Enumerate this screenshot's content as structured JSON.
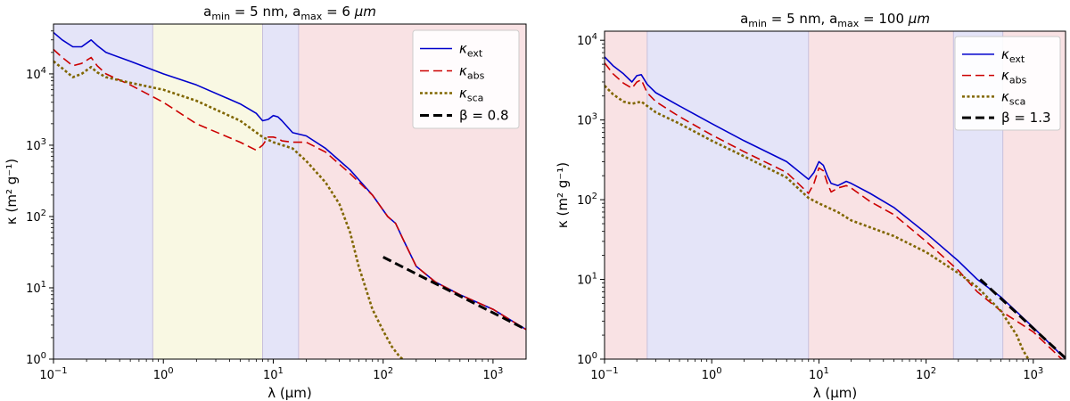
{
  "chart_data": [
    {
      "type": "line",
      "title": "a_min = 5 nm, a_max = 6 μm",
      "title_parts": {
        "amin": "a",
        "amin_sub": "min",
        "amin_val": " = 5 nm, ",
        "amax": "a",
        "amax_sub": "max",
        "amax_val": " = 6 ",
        "unit": "μm"
      },
      "xlabel": "λ (μm)",
      "ylabel": "κ (m² g⁻¹)",
      "xscale": "log",
      "yscale": "log",
      "xlim": [
        0.1,
        2000
      ],
      "ylim": [
        1,
        50000
      ],
      "x_ticks": [
        {
          "value": 0.1,
          "base": "10",
          "exp": "−1"
        },
        {
          "value": 1,
          "base": "10",
          "exp": "0"
        },
        {
          "value": 10,
          "base": "10",
          "exp": "1"
        },
        {
          "value": 100,
          "base": "10",
          "exp": "2"
        },
        {
          "value": 1000,
          "base": "10",
          "exp": "3"
        }
      ],
      "y_ticks": [
        {
          "value": 1,
          "base": "10",
          "exp": "0"
        },
        {
          "value": 10,
          "base": "10",
          "exp": "1"
        },
        {
          "value": 100,
          "base": "10",
          "exp": "2"
        },
        {
          "value": 1000,
          "base": "10",
          "exp": "3"
        },
        {
          "value": 10000,
          "base": "10",
          "exp": "4"
        }
      ],
      "regions": [
        {
          "x0": 0.1,
          "x1": 0.8,
          "color": "#e4e4f8"
        },
        {
          "x0": 0.8,
          "x1": 8,
          "color": "#f9f8e3"
        },
        {
          "x0": 8,
          "x1": 17,
          "color": "#e4e4f8"
        },
        {
          "x0": 17,
          "x1": 2000,
          "color": "#f9e2e4"
        }
      ],
      "legend_location": "top-right",
      "series": [
        {
          "name": "κ_ext",
          "label_main": "κ",
          "label_sub": "ext",
          "color": "#0000cc",
          "dash": "solid",
          "x": [
            0.1,
            0.12,
            0.15,
            0.18,
            0.22,
            0.25,
            0.3,
            0.5,
            1,
            2,
            5,
            7,
            8,
            9,
            10,
            11,
            12,
            15,
            20,
            30,
            50,
            80,
            110,
            130,
            150,
            200,
            300,
            500,
            1000,
            2000
          ],
          "y": [
            38000,
            30000,
            24000,
            24000,
            30000,
            25000,
            20000,
            15000,
            10000,
            7000,
            3800,
            2800,
            2200,
            2300,
            2600,
            2500,
            2200,
            1500,
            1350,
            900,
            450,
            200,
            100,
            80,
            50,
            20,
            12,
            8,
            5,
            2.6
          ]
        },
        {
          "name": "κ_abs",
          "label_main": "κ",
          "label_sub": "abs",
          "color": "#cc0000",
          "dash": "dashed",
          "x": [
            0.1,
            0.12,
            0.15,
            0.18,
            0.22,
            0.25,
            0.3,
            0.5,
            1,
            2,
            5,
            7,
            8,
            9,
            10,
            11,
            12,
            15,
            20,
            30,
            50,
            80,
            110,
            130,
            150,
            200,
            300,
            500,
            1000,
            2000
          ],
          "y": [
            22000,
            17000,
            13000,
            14000,
            17000,
            13000,
            10000,
            7000,
            4000,
            2000,
            1100,
            850,
            1000,
            1300,
            1300,
            1250,
            1150,
            1100,
            1100,
            800,
            400,
            200,
            100,
            80,
            50,
            20,
            12,
            8,
            5,
            2.6
          ]
        },
        {
          "name": "κ_sca",
          "label_main": "κ",
          "label_sub": "sca",
          "color": "#806600",
          "dash": "dotted",
          "x": [
            0.1,
            0.12,
            0.15,
            0.18,
            0.22,
            0.25,
            0.3,
            0.5,
            1,
            2,
            5,
            8,
            10,
            15,
            20,
            30,
            40,
            50,
            60,
            80,
            100,
            120,
            140,
            150
          ],
          "y": [
            15000,
            12000,
            9000,
            10000,
            12500,
            10500,
            9000,
            7500,
            6000,
            4200,
            2200,
            1300,
            1100,
            900,
            600,
            300,
            150,
            60,
            20,
            5,
            2.5,
            1.5,
            1.1,
            1
          ]
        },
        {
          "name": "β = 0.8",
          "label_main": "β = 0.8",
          "label_sub": "",
          "color": "#000000",
          "dash": "fit",
          "x": [
            100,
            2000
          ],
          "y": [
            27,
            2.6
          ]
        }
      ]
    },
    {
      "type": "line",
      "title": "a_min = 5 nm, a_max = 100 μm",
      "title_parts": {
        "amin": "a",
        "amin_sub": "min",
        "amin_val": " = 5 nm, ",
        "amax": "a",
        "amax_sub": "max",
        "amax_val": " = 100 ",
        "unit": "μm"
      },
      "xlabel": "λ (μm)",
      "ylabel": "κ (m² g⁻¹)",
      "xscale": "log",
      "yscale": "log",
      "xlim": [
        0.1,
        2000
      ],
      "ylim": [
        1,
        13000
      ],
      "x_ticks": [
        {
          "value": 0.1,
          "base": "10",
          "exp": "−1"
        },
        {
          "value": 1,
          "base": "10",
          "exp": "0"
        },
        {
          "value": 10,
          "base": "10",
          "exp": "1"
        },
        {
          "value": 100,
          "base": "10",
          "exp": "2"
        },
        {
          "value": 1000,
          "base": "10",
          "exp": "3"
        }
      ],
      "y_ticks": [
        {
          "value": 1,
          "base": "10",
          "exp": "0"
        },
        {
          "value": 10,
          "base": "10",
          "exp": "1"
        },
        {
          "value": 100,
          "base": "10",
          "exp": "2"
        },
        {
          "value": 1000,
          "base": "10",
          "exp": "3"
        },
        {
          "value": 10000,
          "base": "10",
          "exp": "4"
        }
      ],
      "regions": [
        {
          "x0": 0.1,
          "x1": 0.25,
          "color": "#f9e2e4"
        },
        {
          "x0": 0.25,
          "x1": 8,
          "color": "#e4e4f8"
        },
        {
          "x0": 8,
          "x1": 180,
          "color": "#f9e2e4"
        },
        {
          "x0": 180,
          "x1": 520,
          "color": "#e4e4f8"
        },
        {
          "x0": 520,
          "x1": 2000,
          "color": "#f9e2e4"
        }
      ],
      "legend_location": "top-right",
      "series": [
        {
          "name": "κ_ext",
          "label_main": "κ",
          "label_sub": "ext",
          "color": "#0000cc",
          "dash": "solid",
          "x": [
            0.1,
            0.12,
            0.15,
            0.18,
            0.2,
            0.22,
            0.25,
            0.3,
            0.5,
            1,
            2,
            5,
            8,
            9,
            10,
            11,
            12,
            13,
            15,
            18,
            20,
            30,
            50,
            100,
            200,
            300,
            500,
            1000,
            2000
          ],
          "y": [
            6200,
            4800,
            3800,
            3000,
            3600,
            3700,
            2800,
            2200,
            1500,
            900,
            550,
            300,
            180,
            220,
            300,
            270,
            200,
            160,
            150,
            170,
            160,
            120,
            80,
            38,
            17,
            10,
            6,
            2.5,
            1
          ]
        },
        {
          "name": "κ_abs",
          "label_main": "κ",
          "label_sub": "abs",
          "color": "#cc0000",
          "dash": "dashed",
          "x": [
            0.1,
            0.12,
            0.15,
            0.18,
            0.2,
            0.22,
            0.25,
            0.3,
            0.5,
            1,
            2,
            5,
            8,
            9,
            10,
            11,
            12,
            13,
            15,
            18,
            20,
            30,
            50,
            100,
            200,
            300,
            500,
            1000,
            2000
          ],
          "y": [
            5200,
            3800,
            2900,
            2500,
            3000,
            3200,
            2200,
            1700,
            1100,
            650,
            400,
            220,
            120,
            160,
            250,
            230,
            160,
            125,
            140,
            150,
            140,
            95,
            65,
            30,
            13,
            7,
            4,
            2.2,
            0.9
          ]
        },
        {
          "name": "κ_sca",
          "label_main": "κ",
          "label_sub": "sca",
          "color": "#806600",
          "dash": "dotted",
          "x": [
            0.1,
            0.12,
            0.15,
            0.18,
            0.2,
            0.22,
            0.25,
            0.3,
            0.5,
            1,
            2,
            5,
            8,
            10,
            15,
            20,
            30,
            50,
            100,
            200,
            300,
            500,
            700,
            800,
            900
          ],
          "y": [
            2700,
            2100,
            1700,
            1600,
            1650,
            1700,
            1500,
            1250,
            900,
            550,
            350,
            190,
            105,
            90,
            70,
            55,
            45,
            35,
            22,
            12,
            8,
            4,
            2,
            1.3,
            1
          ]
        },
        {
          "name": "β = 1.3",
          "label_main": "β = 1.3",
          "label_sub": "",
          "color": "#000000",
          "dash": "fit",
          "x": [
            320,
            2000
          ],
          "y": [
            10,
            1.03
          ]
        }
      ]
    }
  ]
}
